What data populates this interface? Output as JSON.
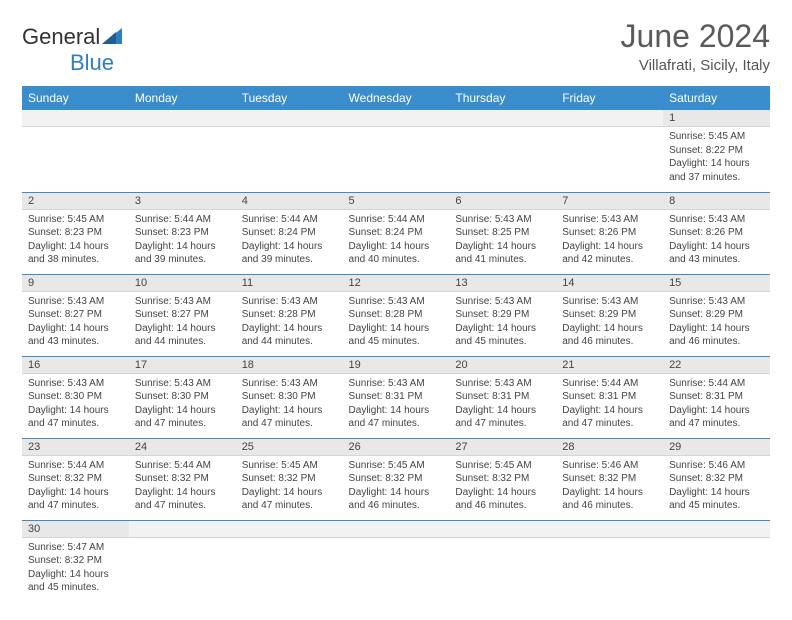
{
  "brand": {
    "name1": "General",
    "name2": "Blue"
  },
  "header": {
    "month": "June 2024",
    "location": "Villafrati, Sicily, Italy"
  },
  "colors": {
    "header_bg": "#3a8dcc",
    "rule": "#3a8dcc",
    "daynum_bg": "#e8e8e8"
  },
  "weekdays": [
    "Sunday",
    "Monday",
    "Tuesday",
    "Wednesday",
    "Thursday",
    "Friday",
    "Saturday"
  ],
  "weeks": [
    [
      {
        "n": "",
        "sr": "",
        "ss": "",
        "dl": ""
      },
      {
        "n": "",
        "sr": "",
        "ss": "",
        "dl": ""
      },
      {
        "n": "",
        "sr": "",
        "ss": "",
        "dl": ""
      },
      {
        "n": "",
        "sr": "",
        "ss": "",
        "dl": ""
      },
      {
        "n": "",
        "sr": "",
        "ss": "",
        "dl": ""
      },
      {
        "n": "",
        "sr": "",
        "ss": "",
        "dl": ""
      },
      {
        "n": "1",
        "sr": "Sunrise: 5:45 AM",
        "ss": "Sunset: 8:22 PM",
        "dl": "Daylight: 14 hours and 37 minutes."
      }
    ],
    [
      {
        "n": "2",
        "sr": "Sunrise: 5:45 AM",
        "ss": "Sunset: 8:23 PM",
        "dl": "Daylight: 14 hours and 38 minutes."
      },
      {
        "n": "3",
        "sr": "Sunrise: 5:44 AM",
        "ss": "Sunset: 8:23 PM",
        "dl": "Daylight: 14 hours and 39 minutes."
      },
      {
        "n": "4",
        "sr": "Sunrise: 5:44 AM",
        "ss": "Sunset: 8:24 PM",
        "dl": "Daylight: 14 hours and 39 minutes."
      },
      {
        "n": "5",
        "sr": "Sunrise: 5:44 AM",
        "ss": "Sunset: 8:24 PM",
        "dl": "Daylight: 14 hours and 40 minutes."
      },
      {
        "n": "6",
        "sr": "Sunrise: 5:43 AM",
        "ss": "Sunset: 8:25 PM",
        "dl": "Daylight: 14 hours and 41 minutes."
      },
      {
        "n": "7",
        "sr": "Sunrise: 5:43 AM",
        "ss": "Sunset: 8:26 PM",
        "dl": "Daylight: 14 hours and 42 minutes."
      },
      {
        "n": "8",
        "sr": "Sunrise: 5:43 AM",
        "ss": "Sunset: 8:26 PM",
        "dl": "Daylight: 14 hours and 43 minutes."
      }
    ],
    [
      {
        "n": "9",
        "sr": "Sunrise: 5:43 AM",
        "ss": "Sunset: 8:27 PM",
        "dl": "Daylight: 14 hours and 43 minutes."
      },
      {
        "n": "10",
        "sr": "Sunrise: 5:43 AM",
        "ss": "Sunset: 8:27 PM",
        "dl": "Daylight: 14 hours and 44 minutes."
      },
      {
        "n": "11",
        "sr": "Sunrise: 5:43 AM",
        "ss": "Sunset: 8:28 PM",
        "dl": "Daylight: 14 hours and 44 minutes."
      },
      {
        "n": "12",
        "sr": "Sunrise: 5:43 AM",
        "ss": "Sunset: 8:28 PM",
        "dl": "Daylight: 14 hours and 45 minutes."
      },
      {
        "n": "13",
        "sr": "Sunrise: 5:43 AM",
        "ss": "Sunset: 8:29 PM",
        "dl": "Daylight: 14 hours and 45 minutes."
      },
      {
        "n": "14",
        "sr": "Sunrise: 5:43 AM",
        "ss": "Sunset: 8:29 PM",
        "dl": "Daylight: 14 hours and 46 minutes."
      },
      {
        "n": "15",
        "sr": "Sunrise: 5:43 AM",
        "ss": "Sunset: 8:29 PM",
        "dl": "Daylight: 14 hours and 46 minutes."
      }
    ],
    [
      {
        "n": "16",
        "sr": "Sunrise: 5:43 AM",
        "ss": "Sunset: 8:30 PM",
        "dl": "Daylight: 14 hours and 47 minutes."
      },
      {
        "n": "17",
        "sr": "Sunrise: 5:43 AM",
        "ss": "Sunset: 8:30 PM",
        "dl": "Daylight: 14 hours and 47 minutes."
      },
      {
        "n": "18",
        "sr": "Sunrise: 5:43 AM",
        "ss": "Sunset: 8:30 PM",
        "dl": "Daylight: 14 hours and 47 minutes."
      },
      {
        "n": "19",
        "sr": "Sunrise: 5:43 AM",
        "ss": "Sunset: 8:31 PM",
        "dl": "Daylight: 14 hours and 47 minutes."
      },
      {
        "n": "20",
        "sr": "Sunrise: 5:43 AM",
        "ss": "Sunset: 8:31 PM",
        "dl": "Daylight: 14 hours and 47 minutes."
      },
      {
        "n": "21",
        "sr": "Sunrise: 5:44 AM",
        "ss": "Sunset: 8:31 PM",
        "dl": "Daylight: 14 hours and 47 minutes."
      },
      {
        "n": "22",
        "sr": "Sunrise: 5:44 AM",
        "ss": "Sunset: 8:31 PM",
        "dl": "Daylight: 14 hours and 47 minutes."
      }
    ],
    [
      {
        "n": "23",
        "sr": "Sunrise: 5:44 AM",
        "ss": "Sunset: 8:32 PM",
        "dl": "Daylight: 14 hours and 47 minutes."
      },
      {
        "n": "24",
        "sr": "Sunrise: 5:44 AM",
        "ss": "Sunset: 8:32 PM",
        "dl": "Daylight: 14 hours and 47 minutes."
      },
      {
        "n": "25",
        "sr": "Sunrise: 5:45 AM",
        "ss": "Sunset: 8:32 PM",
        "dl": "Daylight: 14 hours and 47 minutes."
      },
      {
        "n": "26",
        "sr": "Sunrise: 5:45 AM",
        "ss": "Sunset: 8:32 PM",
        "dl": "Daylight: 14 hours and 46 minutes."
      },
      {
        "n": "27",
        "sr": "Sunrise: 5:45 AM",
        "ss": "Sunset: 8:32 PM",
        "dl": "Daylight: 14 hours and 46 minutes."
      },
      {
        "n": "28",
        "sr": "Sunrise: 5:46 AM",
        "ss": "Sunset: 8:32 PM",
        "dl": "Daylight: 14 hours and 46 minutes."
      },
      {
        "n": "29",
        "sr": "Sunrise: 5:46 AM",
        "ss": "Sunset: 8:32 PM",
        "dl": "Daylight: 14 hours and 45 minutes."
      }
    ],
    [
      {
        "n": "30",
        "sr": "Sunrise: 5:47 AM",
        "ss": "Sunset: 8:32 PM",
        "dl": "Daylight: 14 hours and 45 minutes."
      },
      {
        "n": "",
        "sr": "",
        "ss": "",
        "dl": ""
      },
      {
        "n": "",
        "sr": "",
        "ss": "",
        "dl": ""
      },
      {
        "n": "",
        "sr": "",
        "ss": "",
        "dl": ""
      },
      {
        "n": "",
        "sr": "",
        "ss": "",
        "dl": ""
      },
      {
        "n": "",
        "sr": "",
        "ss": "",
        "dl": ""
      },
      {
        "n": "",
        "sr": "",
        "ss": "",
        "dl": ""
      }
    ]
  ]
}
